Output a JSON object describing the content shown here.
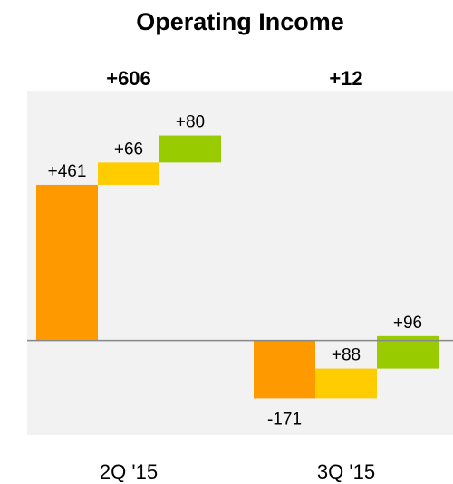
{
  "chart_data": {
    "type": "waterfall",
    "title": "Operating Income",
    "categories": [
      "2Q '15",
      "3Q '15"
    ],
    "totals": [
      606,
      12
    ],
    "total_labels": [
      "+606",
      "+12"
    ],
    "series": [
      {
        "color": "#ff9900",
        "values": [
          461,
          -171
        ],
        "value_labels": [
          "+461",
          "-171"
        ]
      },
      {
        "color": "#ffcc00",
        "values": [
          66,
          88
        ],
        "value_labels": [
          "+66",
          "+88"
        ]
      },
      {
        "color": "#99cc00",
        "values": [
          80,
          96
        ],
        "value_labels": [
          "+80",
          "+96"
        ]
      }
    ],
    "ylim": [
      -280,
      740
    ]
  }
}
